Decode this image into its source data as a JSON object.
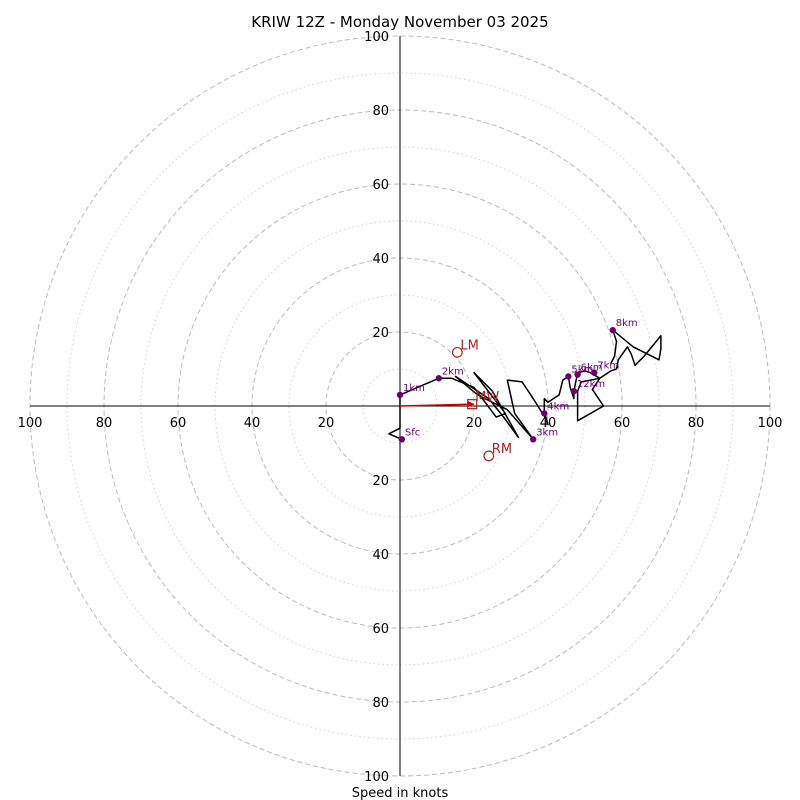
{
  "chart_data": {
    "type": "hodograph",
    "title": "KRIW 12Z - Monday November 03 2025",
    "xlabel": "Speed in knots",
    "max_speed": 100,
    "rings_major": [
      20,
      40,
      60,
      80,
      100
    ],
    "rings_minor": [
      10,
      30,
      50,
      70,
      90
    ],
    "x_tick_labels": [
      "100",
      "80",
      "60",
      "40",
      "20",
      "20",
      "40",
      "60",
      "80",
      "100"
    ],
    "x_tick_values": [
      -100,
      -80,
      -60,
      -40,
      -20,
      20,
      40,
      60,
      80,
      100
    ],
    "y_tick_labels": [
      "100",
      "80",
      "60",
      "40",
      "20",
      "20",
      "40",
      "60",
      "80",
      "100"
    ],
    "y_tick_values": [
      100,
      80,
      60,
      40,
      20,
      -20,
      -40,
      -60,
      -80,
      -100
    ],
    "hodograph_uv": [
      [
        0.5,
        -9
      ],
      [
        -3,
        -7.5
      ],
      [
        0,
        -6
      ],
      [
        0,
        3
      ],
      [
        7,
        6
      ],
      [
        10.5,
        7.5
      ],
      [
        14,
        7.5
      ],
      [
        20,
        5
      ],
      [
        23,
        1
      ],
      [
        26,
        -3
      ],
      [
        28.5,
        -2
      ],
      [
        20,
        9
      ],
      [
        25,
        4
      ],
      [
        32,
        -8.5
      ],
      [
        28,
        -3
      ],
      [
        24,
        2
      ],
      [
        15,
        8
      ],
      [
        21,
        3
      ],
      [
        29,
        -1
      ],
      [
        36,
        -9
      ],
      [
        31,
        -2
      ],
      [
        29,
        7
      ],
      [
        33,
        6.5
      ],
      [
        36,
        2
      ],
      [
        38.5,
        -2
      ],
      [
        39,
        -2.5
      ],
      [
        40,
        -5
      ],
      [
        39,
        -1.5
      ],
      [
        39,
        2
      ],
      [
        40,
        1
      ],
      [
        43,
        3
      ],
      [
        44,
        7
      ],
      [
        45.5,
        8
      ],
      [
        46,
        5
      ],
      [
        47,
        2
      ],
      [
        47,
        4
      ],
      [
        48,
        9
      ],
      [
        50,
        9.5
      ],
      [
        51.5,
        9
      ],
      [
        54,
        7.5
      ],
      [
        52,
        4.5
      ],
      [
        55,
        0
      ],
      [
        48,
        -4
      ],
      [
        48,
        4
      ],
      [
        49,
        6.5
      ],
      [
        54,
        7.5
      ],
      [
        57,
        9.5
      ],
      [
        58.5,
        10
      ],
      [
        59,
        12.5
      ],
      [
        61.5,
        16
      ],
      [
        62.5,
        14
      ],
      [
        63.5,
        11
      ],
      [
        66,
        13.5
      ],
      [
        70.5,
        19
      ],
      [
        70.5,
        15.5
      ],
      [
        70,
        12.5
      ],
      [
        63,
        16
      ],
      [
        57.5,
        20.5
      ],
      [
        58.5,
        17.5
      ],
      [
        58,
        13.5
      ],
      [
        57,
        11.5
      ]
    ],
    "height_points": [
      {
        "label": "Sfc",
        "u": 0.5,
        "v": -9
      },
      {
        "label": "1km",
        "u": 0,
        "v": 3
      },
      {
        "label": "2km",
        "u": 10.5,
        "v": 7.5
      },
      {
        "label": "3km",
        "u": 36,
        "v": -9
      },
      {
        "label": "4km",
        "u": 39,
        "v": -2
      },
      {
        "label": "5km",
        "u": 45.5,
        "v": 8
      },
      {
        "label": "6km",
        "u": 48,
        "v": 8.5
      },
      {
        "label": "7km",
        "u": 52.5,
        "v": 9
      },
      {
        "label": "8km",
        "u": 57.5,
        "v": 20.5
      },
      {
        "label": "12km",
        "u": 47,
        "v": 4
      }
    ],
    "storm_motions": [
      {
        "label": "LM",
        "u": 15.5,
        "v": 14.5,
        "marker": "circle"
      },
      {
        "label": "RM",
        "u": 24,
        "v": -13.5,
        "marker": "circle"
      },
      {
        "label": "MW",
        "u": 19.5,
        "v": 0.5,
        "marker": "square"
      }
    ],
    "shear_vector": {
      "from": [
        0,
        0
      ],
      "to": [
        19.5,
        0.5
      ],
      "color": "#cc0000"
    }
  }
}
